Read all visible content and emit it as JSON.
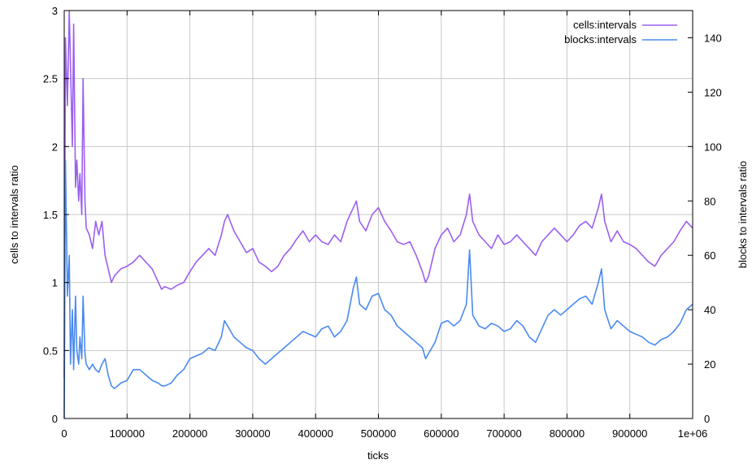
{
  "chart_data": {
    "type": "line",
    "xlabel": "ticks",
    "ylabel_left": "cells to intervals ratio",
    "ylabel_right": "blocks to intervals ratio",
    "xlim": [
      0,
      1000000
    ],
    "ylim_left": [
      0,
      3
    ],
    "ylim_right": [
      0,
      150
    ],
    "grid": true,
    "legend_position": "top-right",
    "x_ticks": [
      {
        "value": 0,
        "label": "0"
      },
      {
        "value": 100000,
        "label": "100000"
      },
      {
        "value": 200000,
        "label": "200000"
      },
      {
        "value": 300000,
        "label": "300000"
      },
      {
        "value": 400000,
        "label": "400000"
      },
      {
        "value": 500000,
        "label": "500000"
      },
      {
        "value": 600000,
        "label": "600000"
      },
      {
        "value": 700000,
        "label": "700000"
      },
      {
        "value": 800000,
        "label": "800000"
      },
      {
        "value": 900000,
        "label": "900000"
      },
      {
        "value": 1000000,
        "label": "1e+06"
      }
    ],
    "y_ticks_left": [
      {
        "value": 0,
        "label": "0"
      },
      {
        "value": 0.5,
        "label": "0.5"
      },
      {
        "value": 1,
        "label": "1"
      },
      {
        "value": 1.5,
        "label": "1.5"
      },
      {
        "value": 2,
        "label": "2"
      },
      {
        "value": 2.5,
        "label": "2.5"
      },
      {
        "value": 3,
        "label": "3"
      }
    ],
    "y_ticks_right": [
      {
        "value": 0,
        "label": "0"
      },
      {
        "value": 20,
        "label": "20"
      },
      {
        "value": 40,
        "label": "40"
      },
      {
        "value": 60,
        "label": "60"
      },
      {
        "value": 80,
        "label": "80"
      },
      {
        "value": 100,
        "label": "100"
      },
      {
        "value": 120,
        "label": "120"
      },
      {
        "value": 140,
        "label": "140"
      }
    ],
    "series": [
      {
        "name": "cells:intervals",
        "axis": "left",
        "color": "#9b5ff0",
        "x": [
          0,
          2000,
          5000,
          8000,
          10000,
          13000,
          15000,
          18000,
          20000,
          23000,
          25000,
          28000,
          30000,
          33000,
          35000,
          40000,
          45000,
          50000,
          55000,
          60000,
          65000,
          70000,
          75000,
          80000,
          90000,
          100000,
          110000,
          120000,
          130000,
          140000,
          150000,
          155000,
          160000,
          170000,
          180000,
          190000,
          200000,
          210000,
          220000,
          230000,
          240000,
          250000,
          255000,
          260000,
          270000,
          280000,
          290000,
          300000,
          310000,
          320000,
          330000,
          340000,
          350000,
          360000,
          370000,
          380000,
          390000,
          400000,
          410000,
          420000,
          430000,
          440000,
          450000,
          460000,
          465000,
          470000,
          480000,
          490000,
          500000,
          510000,
          520000,
          530000,
          540000,
          550000,
          560000,
          570000,
          575000,
          580000,
          590000,
          600000,
          610000,
          620000,
          630000,
          640000,
          645000,
          650000,
          660000,
          670000,
          680000,
          690000,
          700000,
          710000,
          720000,
          730000,
          740000,
          750000,
          760000,
          770000,
          780000,
          790000,
          800000,
          810000,
          820000,
          830000,
          840000,
          850000,
          855000,
          860000,
          870000,
          880000,
          890000,
          900000,
          910000,
          920000,
          930000,
          940000,
          950000,
          960000,
          970000,
          980000,
          990000,
          1000000
        ],
        "values": [
          0.3,
          2.8,
          2.3,
          3.0,
          2.6,
          2.0,
          2.9,
          1.7,
          1.9,
          1.6,
          1.8,
          1.5,
          2.5,
          1.6,
          1.4,
          1.35,
          1.25,
          1.45,
          1.35,
          1.45,
          1.2,
          1.1,
          1.0,
          1.05,
          1.1,
          1.12,
          1.15,
          1.2,
          1.15,
          1.1,
          1.0,
          0.95,
          0.97,
          0.95,
          0.98,
          1.0,
          1.08,
          1.15,
          1.2,
          1.25,
          1.2,
          1.35,
          1.45,
          1.5,
          1.38,
          1.3,
          1.22,
          1.25,
          1.15,
          1.12,
          1.08,
          1.12,
          1.2,
          1.25,
          1.32,
          1.38,
          1.3,
          1.35,
          1.3,
          1.28,
          1.35,
          1.3,
          1.45,
          1.55,
          1.6,
          1.45,
          1.38,
          1.5,
          1.55,
          1.45,
          1.38,
          1.3,
          1.28,
          1.3,
          1.2,
          1.08,
          1.0,
          1.05,
          1.25,
          1.35,
          1.4,
          1.3,
          1.35,
          1.5,
          1.65,
          1.45,
          1.35,
          1.3,
          1.25,
          1.35,
          1.28,
          1.3,
          1.35,
          1.3,
          1.25,
          1.2,
          1.3,
          1.35,
          1.4,
          1.35,
          1.3,
          1.35,
          1.42,
          1.45,
          1.4,
          1.55,
          1.65,
          1.45,
          1.3,
          1.38,
          1.3,
          1.28,
          1.25,
          1.2,
          1.15,
          1.12,
          1.2,
          1.25,
          1.3,
          1.38,
          1.45,
          1.4
        ]
      },
      {
        "name": "blocks:intervals",
        "axis": "right",
        "color": "#4a8af0",
        "x": [
          0,
          2000,
          5000,
          8000,
          10000,
          13000,
          15000,
          18000,
          20000,
          23000,
          25000,
          28000,
          30000,
          33000,
          35000,
          40000,
          45000,
          50000,
          55000,
          60000,
          65000,
          70000,
          75000,
          80000,
          90000,
          100000,
          110000,
          120000,
          130000,
          140000,
          150000,
          155000,
          160000,
          170000,
          180000,
          190000,
          200000,
          210000,
          220000,
          230000,
          240000,
          250000,
          255000,
          260000,
          270000,
          280000,
          290000,
          300000,
          310000,
          320000,
          330000,
          340000,
          350000,
          360000,
          370000,
          380000,
          390000,
          400000,
          410000,
          420000,
          430000,
          440000,
          450000,
          460000,
          465000,
          470000,
          480000,
          490000,
          500000,
          510000,
          520000,
          530000,
          540000,
          550000,
          560000,
          570000,
          575000,
          580000,
          590000,
          600000,
          610000,
          620000,
          630000,
          640000,
          645000,
          650000,
          660000,
          670000,
          680000,
          690000,
          700000,
          710000,
          720000,
          730000,
          740000,
          750000,
          760000,
          770000,
          780000,
          790000,
          800000,
          810000,
          820000,
          830000,
          840000,
          850000,
          855000,
          860000,
          870000,
          880000,
          890000,
          900000,
          910000,
          920000,
          930000,
          940000,
          950000,
          960000,
          970000,
          980000,
          990000,
          1000000
        ],
        "values": [
          0,
          95,
          45,
          60,
          20,
          40,
          18,
          45,
          25,
          20,
          30,
          22,
          45,
          24,
          20,
          18,
          20,
          18,
          17,
          20,
          22,
          16,
          12,
          11,
          13,
          14,
          18,
          18,
          16,
          14,
          13,
          12,
          12,
          13,
          16,
          18,
          22,
          23,
          24,
          26,
          25,
          30,
          36,
          34,
          30,
          28,
          26,
          25,
          22,
          20,
          22,
          24,
          26,
          28,
          30,
          32,
          31,
          30,
          33,
          34,
          30,
          32,
          36,
          48,
          52,
          42,
          40,
          45,
          46,
          40,
          38,
          34,
          32,
          30,
          28,
          26,
          22,
          24,
          28,
          35,
          36,
          34,
          36,
          42,
          62,
          38,
          34,
          33,
          35,
          34,
          32,
          33,
          36,
          34,
          30,
          28,
          33,
          38,
          40,
          38,
          40,
          42,
          44,
          45,
          42,
          50,
          55,
          40,
          33,
          36,
          34,
          32,
          31,
          30,
          28,
          27,
          29,
          30,
          32,
          35,
          40,
          42
        ]
      }
    ]
  }
}
